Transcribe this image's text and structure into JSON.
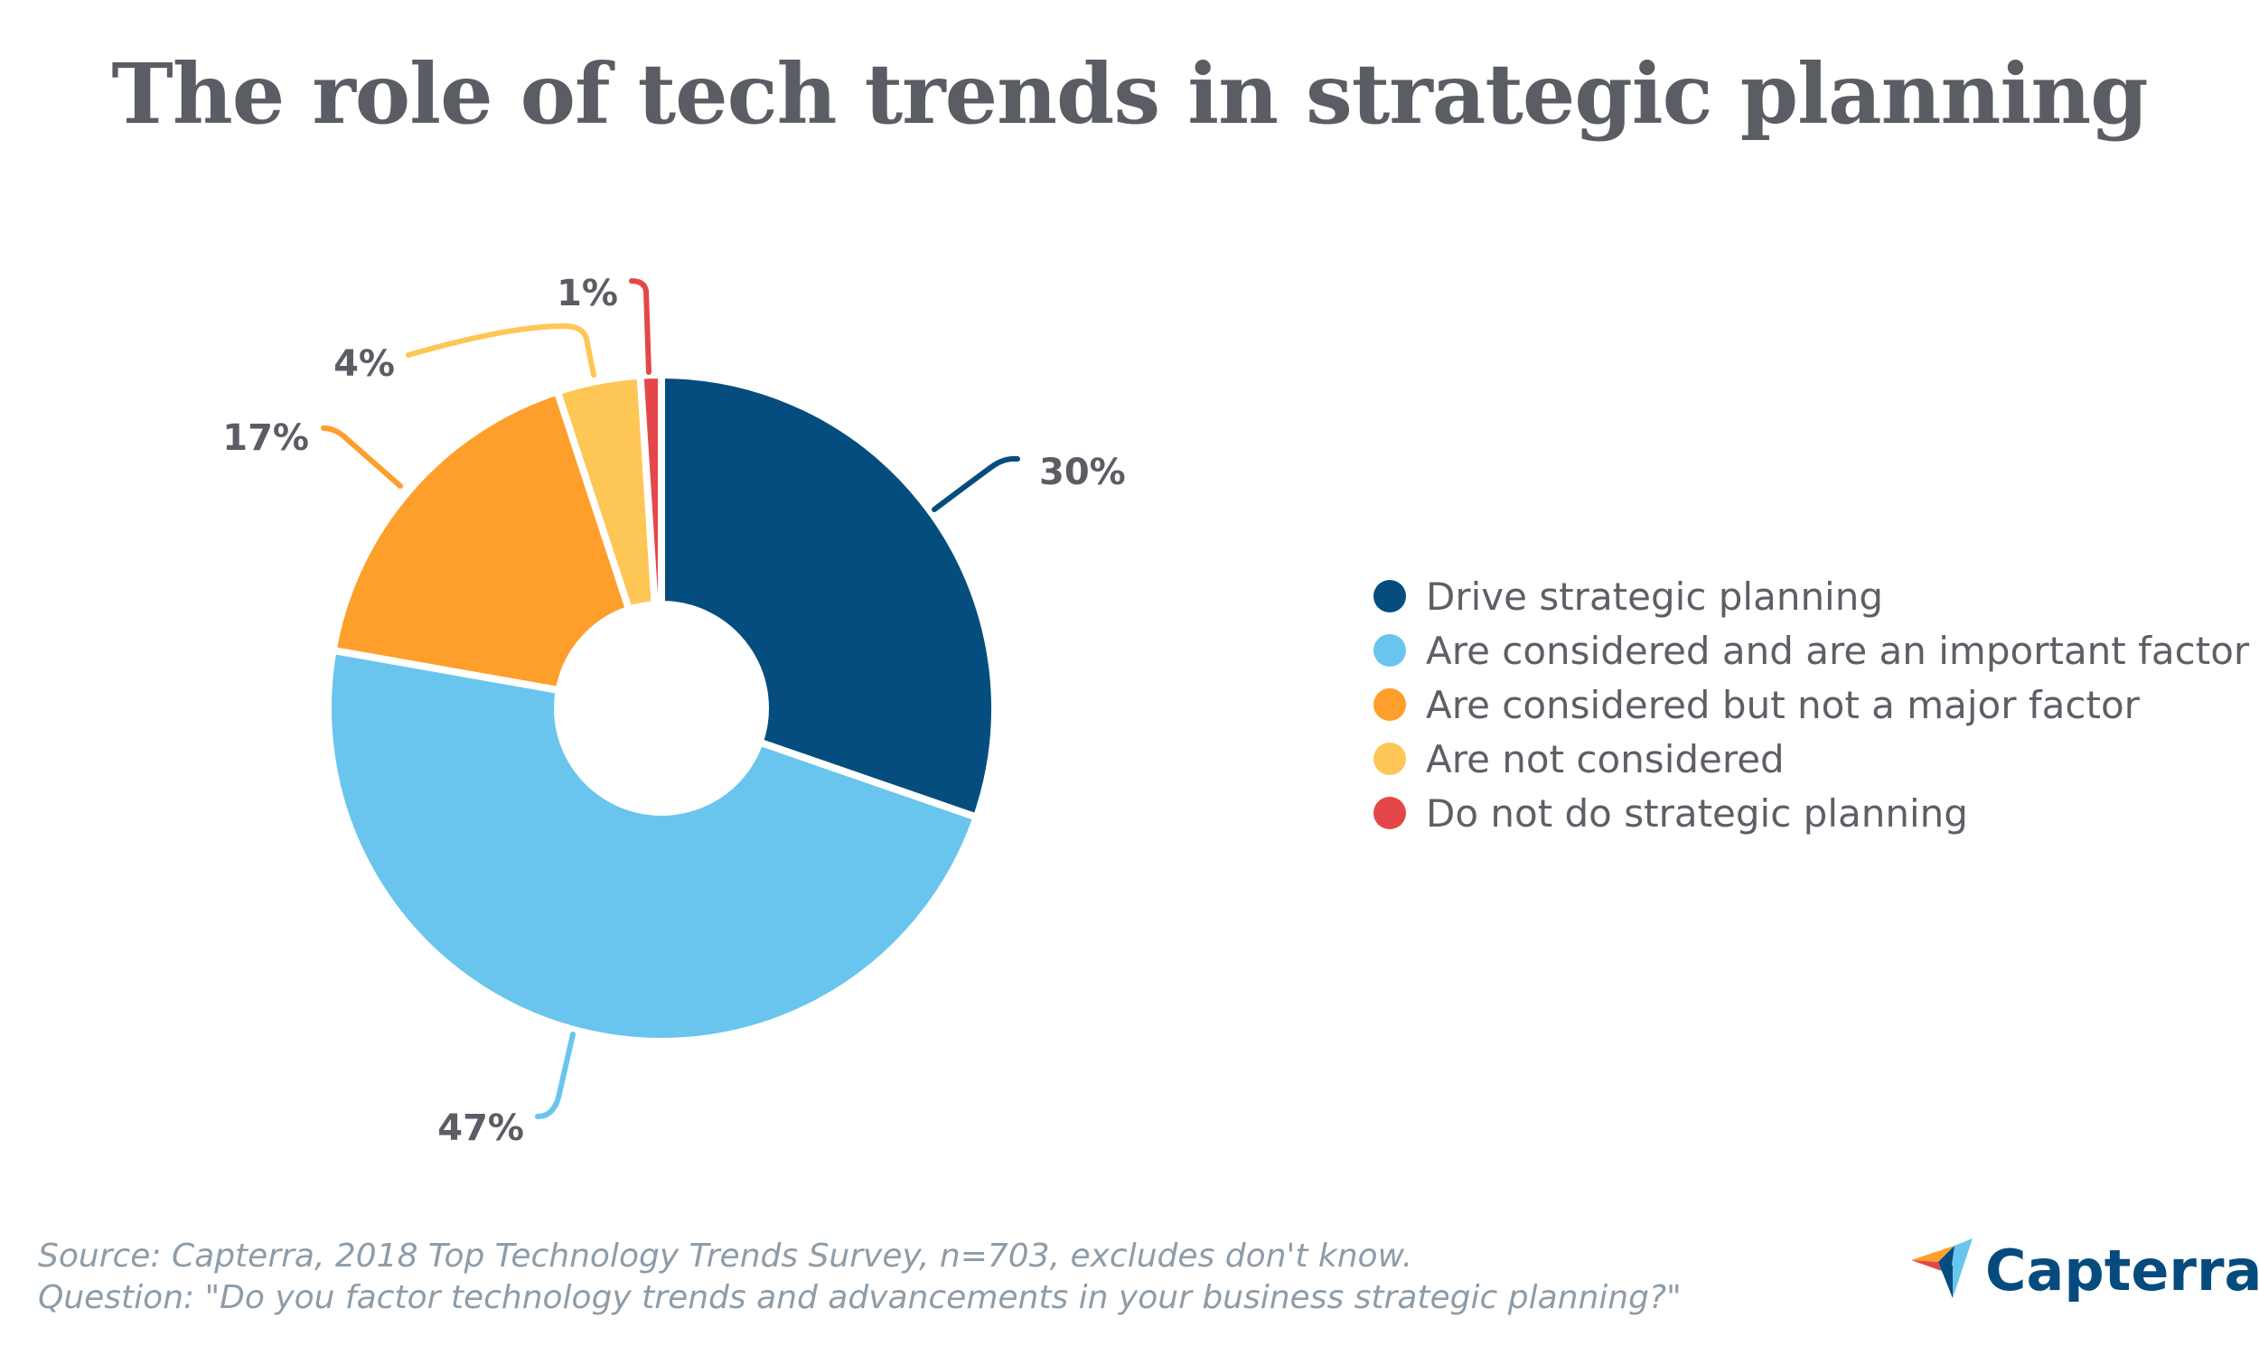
{
  "chart_data": {
    "type": "pie",
    "donut": true,
    "title": "The role of tech trends in strategic planning",
    "categories": [
      "Drive strategic planning",
      "Are considered and are an important factor",
      "Are considered but not a major factor",
      "Are not considered",
      "Do not do strategic planning"
    ],
    "values": [
      30,
      47,
      17,
      4,
      1
    ],
    "data_labels": [
      "30%",
      "47%",
      "17%",
      "4%",
      "1%"
    ],
    "colors": [
      "#054d7f",
      "#69c5ed",
      "#fe9e2b",
      "#fec655",
      "#e4474a"
    ],
    "legend_position": "right"
  },
  "footer": {
    "source": "Source: Capterra, 2018 Top Technology Trends Survey, n=703, excludes don't know.",
    "question": "Question: \"Do you factor technology trends and advancements in your business strategic planning?\""
  },
  "logo": {
    "text": "Capterra"
  }
}
